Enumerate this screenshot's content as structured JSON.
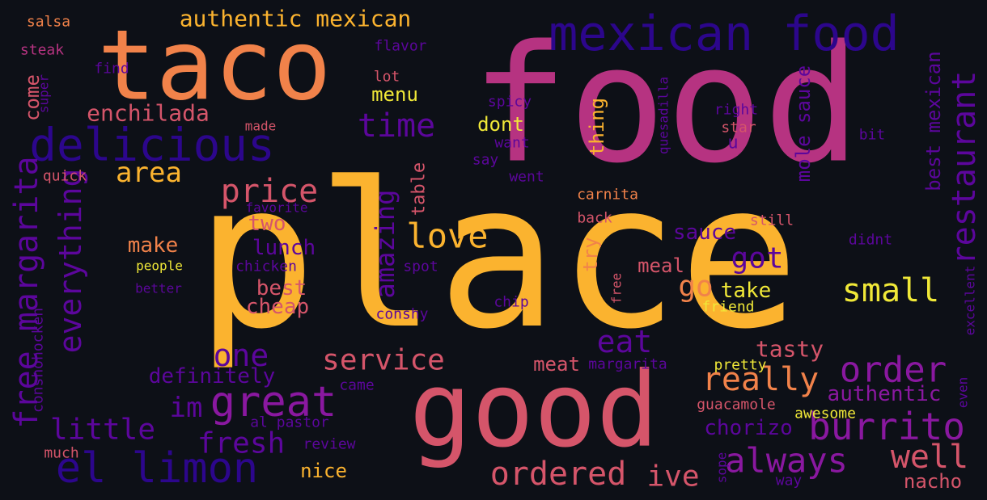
{
  "colors": {
    "background": "#0d1017",
    "yellow": "#fbb32f",
    "orange": "#f1824a",
    "pink": "#d5556a",
    "magenta": "#b63381",
    "purple": "#8a18a0",
    "violet": "#5c069c",
    "indigo": "#2c068c",
    "lightyellow": "#f0e838"
  },
  "words": [
    {
      "text": "place",
      "color": "yellow"
    },
    {
      "text": "food",
      "color": "magenta"
    },
    {
      "text": "taco",
      "color": "orange"
    },
    {
      "text": "good",
      "color": "pink"
    },
    {
      "text": "mexican food",
      "color": "indigo"
    },
    {
      "text": "delicious",
      "color": "indigo"
    },
    {
      "text": "authentic mexican",
      "color": "yellow"
    },
    {
      "text": "el limon",
      "color": "indigo"
    },
    {
      "text": "great",
      "color": "purple"
    },
    {
      "text": "burrito",
      "color": "purple"
    },
    {
      "text": "restaurant",
      "color": "violet"
    },
    {
      "text": "free margarita",
      "color": "violet"
    },
    {
      "text": "everything",
      "color": "violet"
    },
    {
      "text": "price",
      "color": "pink"
    },
    {
      "text": "love",
      "color": "yellow"
    },
    {
      "text": "small",
      "color": "lightyellow"
    },
    {
      "text": "always",
      "color": "purple"
    },
    {
      "text": "service",
      "color": "pink"
    },
    {
      "text": "ordered",
      "color": "pink"
    },
    {
      "text": "order",
      "color": "purple"
    },
    {
      "text": "really",
      "color": "orange"
    },
    {
      "text": "well",
      "color": "pink"
    },
    {
      "text": "one",
      "color": "violet"
    },
    {
      "text": "time",
      "color": "violet"
    },
    {
      "text": "amazing",
      "color": "violet"
    },
    {
      "text": "area",
      "color": "yellow"
    },
    {
      "text": "little",
      "color": "violet"
    },
    {
      "text": "fresh",
      "color": "violet"
    },
    {
      "text": "got",
      "color": "violet"
    },
    {
      "text": "go",
      "color": "orange"
    },
    {
      "text": "eat",
      "color": "violet"
    },
    {
      "text": "ive",
      "color": "pink"
    },
    {
      "text": "im",
      "color": "violet"
    },
    {
      "text": "tasty",
      "color": "pink"
    },
    {
      "text": "enchilada",
      "color": "pink"
    },
    {
      "text": "mole sauce",
      "color": "violet"
    },
    {
      "text": "best mexican",
      "color": "violet"
    },
    {
      "text": "definitely",
      "color": "violet"
    },
    {
      "text": "authentic",
      "color": "purple"
    },
    {
      "text": "nacho",
      "color": "pink"
    },
    {
      "text": "chorizo",
      "color": "violet"
    },
    {
      "text": "sauce",
      "color": "violet"
    },
    {
      "text": "lunch",
      "color": "violet"
    },
    {
      "text": "best",
      "color": "pink"
    },
    {
      "text": "cheap",
      "color": "pink"
    },
    {
      "text": "two",
      "color": "pink"
    },
    {
      "text": "make",
      "color": "orange"
    },
    {
      "text": "take",
      "color": "lightyellow"
    },
    {
      "text": "meal",
      "color": "pink"
    },
    {
      "text": "meat",
      "color": "pink"
    },
    {
      "text": "nice",
      "color": "yellow"
    },
    {
      "text": "menu",
      "color": "lightyellow"
    },
    {
      "text": "dont",
      "color": "lightyellow"
    },
    {
      "text": "thing",
      "color": "yellow"
    },
    {
      "text": "table",
      "color": "pink"
    },
    {
      "text": "try",
      "color": "orange"
    },
    {
      "text": "come",
      "color": "pink"
    },
    {
      "text": "u",
      "color": "violet"
    },
    {
      "text": "quesadilla",
      "color": "violet"
    },
    {
      "text": "carnita",
      "color": "orange"
    },
    {
      "text": "back",
      "color": "pink"
    },
    {
      "text": "still",
      "color": "pink"
    },
    {
      "text": "didnt",
      "color": "violet"
    },
    {
      "text": "pretty",
      "color": "lightyellow"
    },
    {
      "text": "guacamole",
      "color": "pink"
    },
    {
      "text": "awesome",
      "color": "lightyellow"
    },
    {
      "text": "excellent",
      "color": "violet"
    },
    {
      "text": "even",
      "color": "violet"
    },
    {
      "text": "friend",
      "color": "lightyellow"
    },
    {
      "text": "free",
      "color": "pink"
    },
    {
      "text": "margarita",
      "color": "violet"
    },
    {
      "text": "came",
      "color": "violet"
    },
    {
      "text": "al pastor",
      "color": "violet"
    },
    {
      "text": "review",
      "color": "violet"
    },
    {
      "text": "much",
      "color": "pink"
    },
    {
      "text": "conshohocken",
      "color": "violet"
    },
    {
      "text": "sope",
      "color": "violet"
    },
    {
      "text": "way",
      "color": "violet"
    },
    {
      "text": "salsa",
      "color": "orange"
    },
    {
      "text": "steak",
      "color": "magenta"
    },
    {
      "text": "super",
      "color": "violet"
    },
    {
      "text": "find",
      "color": "violet"
    },
    {
      "text": "flavor",
      "color": "violet"
    },
    {
      "text": "lot",
      "color": "pink"
    },
    {
      "text": "spicy",
      "color": "violet"
    },
    {
      "text": "right",
      "color": "violet"
    },
    {
      "text": "star",
      "color": "pink"
    },
    {
      "text": "bit",
      "color": "violet"
    },
    {
      "text": "want",
      "color": "violet"
    },
    {
      "text": "say",
      "color": "violet"
    },
    {
      "text": "went",
      "color": "violet"
    },
    {
      "text": "made",
      "color": "pink"
    },
    {
      "text": "quick",
      "color": "pink"
    },
    {
      "text": "favorite",
      "color": "violet"
    },
    {
      "text": "people",
      "color": "lightyellow"
    },
    {
      "text": "better",
      "color": "violet"
    },
    {
      "text": "chicken",
      "color": "violet"
    },
    {
      "text": "spot",
      "color": "violet"
    },
    {
      "text": "conshy",
      "color": "violet"
    },
    {
      "text": "chip",
      "color": "violet"
    }
  ]
}
